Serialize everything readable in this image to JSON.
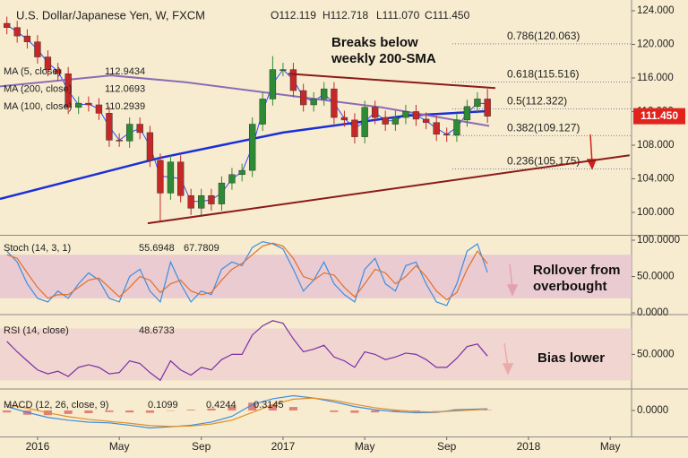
{
  "header": {
    "symbol": "U.S. Dollar/Japanese Yen, W, FXCM",
    "ohlc": [
      {
        "value": 112.119,
        "label": "O112.119"
      },
      {
        "value": 112.718,
        "label": "H112.718"
      },
      {
        "value": 111.07,
        "label": "L111.070"
      },
      {
        "value": 111.45,
        "label": "C111.450"
      }
    ]
  },
  "annotations": [
    {
      "lines": [
        "Breaks below",
        "weekly 200-SMA"
      ]
    },
    {
      "lines": [
        "Rollover from",
        "overbought"
      ]
    },
    {
      "lines": [
        "Bias lower"
      ]
    }
  ],
  "chart_data": [
    {
      "type": "candlestick",
      "up_color": "#2e8b35",
      "down_color": "#c62828",
      "xlim": [
        2015.847,
        2018.42
      ],
      "ylim": [
        97.33,
        125.28
      ],
      "yticks": [
        {
          "value": 100,
          "label": "100.000"
        },
        {
          "value": 104,
          "label": "104.000"
        },
        {
          "value": 108,
          "label": "108.000"
        },
        {
          "value": 112,
          "label": "112.000"
        },
        {
          "value": 116,
          "label": "116.000"
        },
        {
          "value": 120,
          "label": "120.000"
        },
        {
          "value": 124,
          "label": "124.000"
        }
      ],
      "x": [
        2015.875,
        2015.917,
        2015.958,
        2016.0,
        2016.042,
        2016.083,
        2016.125,
        2016.167,
        2016.208,
        2016.25,
        2016.292,
        2016.333,
        2016.375,
        2016.417,
        2016.458,
        2016.5,
        2016.542,
        2016.583,
        2016.625,
        2016.667,
        2016.708,
        2016.75,
        2016.792,
        2016.833,
        2016.875,
        2016.917,
        2016.958,
        2017.0,
        2017.042,
        2017.083,
        2017.125,
        2017.167,
        2017.208,
        2017.25,
        2017.292,
        2017.333,
        2017.375,
        2017.417,
        2017.458,
        2017.5,
        2017.542,
        2017.583,
        2017.625,
        2017.667,
        2017.708,
        2017.75,
        2017.792,
        2017.833
      ],
      "open": [
        122.5,
        122.0,
        121.0,
        120.3,
        118.5,
        117.0,
        116.5,
        112.5,
        113.0,
        112.8,
        111.8,
        108.6,
        108.5,
        110.5,
        109.5,
        106.2,
        102.3,
        106.0,
        102.0,
        100.5,
        102.0,
        101.0,
        103.5,
        104.5,
        105.0,
        110.5,
        113.5,
        117.0,
        117.0,
        114.5,
        112.8,
        113.5,
        114.7,
        111.3,
        111.0,
        109.0,
        112.5,
        111.3,
        110.5,
        111.3,
        112.0,
        111.1,
        110.7,
        109.3,
        109.2,
        111.0,
        112.6,
        113.5
      ],
      "high": [
        123.3,
        122.8,
        121.8,
        121.1,
        119.3,
        117.8,
        117.3,
        113.8,
        113.8,
        113.6,
        112.6,
        109.4,
        111.3,
        111.3,
        110.3,
        107.0,
        106.8,
        106.8,
        102.8,
        102.8,
        102.8,
        104.3,
        105.3,
        105.8,
        111.3,
        114.3,
        118.6,
        117.8,
        117.8,
        115.3,
        114.3,
        115.5,
        115.5,
        112.1,
        111.8,
        113.3,
        113.3,
        112.1,
        112.1,
        112.8,
        112.8,
        111.9,
        111.5,
        110.1,
        111.8,
        113.4,
        114.3,
        114.7
      ],
      "low": [
        121.2,
        120.2,
        119.5,
        117.7,
        116.2,
        115.7,
        111.7,
        111.7,
        112.0,
        111.0,
        107.8,
        107.8,
        107.7,
        108.7,
        105.4,
        99.0,
        101.5,
        101.2,
        99.7,
        99.7,
        100.2,
        100.2,
        102.7,
        103.7,
        104.2,
        109.7,
        112.7,
        116.2,
        113.7,
        112.0,
        112.0,
        112.7,
        110.5,
        110.2,
        108.2,
        108.2,
        110.5,
        109.7,
        109.7,
        110.5,
        110.3,
        109.9,
        108.5,
        108.4,
        108.4,
        110.2,
        111.8,
        110.65
      ],
      "close": [
        122.0,
        121.0,
        120.3,
        118.5,
        117.0,
        116.5,
        112.5,
        113.0,
        112.8,
        111.8,
        108.6,
        108.5,
        110.5,
        109.5,
        106.2,
        102.3,
        106.0,
        102.0,
        100.5,
        102.0,
        101.0,
        103.5,
        104.5,
        105.0,
        110.5,
        113.5,
        117.0,
        117.0,
        114.5,
        112.8,
        113.5,
        114.7,
        111.3,
        111.0,
        109.0,
        112.5,
        111.3,
        110.5,
        111.3,
        112.0,
        111.1,
        110.7,
        109.3,
        109.2,
        111.0,
        112.6,
        113.5,
        111.45
      ],
      "series": [
        {
          "name": "MA (5, close)",
          "color": "#2f4bff",
          "width": 1,
          "x": [
            2015.875,
            2015.917,
            2015.958,
            2016.0,
            2016.042,
            2016.083,
            2016.125,
            2016.167,
            2016.208,
            2016.25,
            2016.292,
            2016.333,
            2016.375,
            2016.417,
            2016.458,
            2016.5,
            2016.542,
            2016.583,
            2016.625,
            2016.667,
            2016.708,
            2016.75,
            2016.792,
            2016.833,
            2016.875,
            2016.917,
            2016.958,
            2017.0,
            2017.042,
            2017.083,
            2017.125,
            2017.167,
            2017.208,
            2017.25,
            2017.292,
            2017.333,
            2017.375,
            2017.417,
            2017.458,
            2017.5,
            2017.542,
            2017.583,
            2017.625,
            2017.667,
            2017.708,
            2017.75,
            2017.792,
            2017.833
          ],
          "values": [
            122.3,
            121.5,
            120.6,
            119.4,
            117.8,
            116.8,
            114.5,
            112.8,
            112.9,
            112.3,
            110.2,
            108.6,
            109.5,
            110.0,
            107.9,
            104.3,
            104.2,
            104.0,
            101.3,
            101.3,
            101.5,
            102.3,
            104.0,
            104.8,
            107.8,
            112.0,
            115.3,
            117.0,
            115.8,
            113.7,
            113.2,
            114.1,
            113.0,
            111.2,
            110.0,
            110.8,
            111.9,
            110.9,
            110.9,
            111.7,
            111.6,
            110.9,
            110.0,
            109.3,
            110.1,
            111.8,
            113.0,
            112.9434
          ]
        },
        {
          "name": "MA (200, close)",
          "color": "#1a2fd6",
          "width": 2.5,
          "x": [
            2015.847,
            2016.5,
            2017.0,
            2017.5,
            2017.84
          ],
          "values": [
            101.6,
            106.5,
            109.5,
            111.5,
            112.0693
          ]
        },
        {
          "name": "MA (100, close)",
          "color": "#8d6bb5",
          "width": 2,
          "x": [
            2015.847,
            2016.3,
            2016.6,
            2017.0,
            2017.4,
            2017.84
          ],
          "values": [
            115.0,
            116.3,
            115.5,
            114.0,
            112.5,
            110.2939
          ]
        }
      ],
      "last": {
        "value": 111.45,
        "label": "111.450"
      },
      "fib": [
        {
          "value": 120.063,
          "label": "0.786(120.063)"
        },
        {
          "value": 115.516,
          "label": "0.618(115.516)"
        },
        {
          "value": 112.322,
          "label": "0.5(112.322)"
        },
        {
          "value": 109.127,
          "label": "0.382(109.127)"
        },
        {
          "value": 105.175,
          "label": "0.236(105.175)"
        }
      ],
      "trendlines": [
        {
          "color": "#8b1a1a",
          "x": [
            2017.022,
            2017.865
          ],
          "y": [
            116.5,
            114.8
          ]
        },
        {
          "color": "#8b1a1a",
          "x": [
            2016.449,
            2018.412
          ],
          "y": [
            98.7,
            106.8
          ]
        }
      ]
    },
    {
      "type": "line",
      "indicator": "Stoch (14, 3, 1)",
      "xlim": [
        2015.847,
        2018.42
      ],
      "ylim": [
        -1.2,
        106.2
      ],
      "bands": [
        20,
        80
      ],
      "band_color": "#e6c3d2",
      "yticks": [
        {
          "value": 0,
          "label": "0.0000"
        },
        {
          "value": 50,
          "label": "50.0000"
        },
        {
          "value": 100,
          "label": "100.0000"
        }
      ],
      "x": [
        2015.875,
        2015.917,
        2015.958,
        2016.0,
        2016.042,
        2016.083,
        2016.125,
        2016.167,
        2016.208,
        2016.25,
        2016.292,
        2016.333,
        2016.375,
        2016.417,
        2016.458,
        2016.5,
        2016.542,
        2016.583,
        2016.625,
        2016.667,
        2016.708,
        2016.75,
        2016.792,
        2016.833,
        2016.875,
        2016.917,
        2016.958,
        2017.0,
        2017.042,
        2017.083,
        2017.125,
        2017.167,
        2017.208,
        2017.25,
        2017.292,
        2017.333,
        2017.375,
        2017.417,
        2017.458,
        2017.5,
        2017.542,
        2017.583,
        2017.625,
        2017.667,
        2017.708,
        2017.75,
        2017.792,
        2017.833
      ],
      "series": [
        {
          "color": "#3d8ee0",
          "values": [
            85,
            70,
            40,
            20,
            15,
            30,
            20,
            40,
            55,
            45,
            20,
            15,
            50,
            60,
            30,
            15,
            70,
            40,
            15,
            30,
            25,
            60,
            70,
            65,
            90,
            98,
            95,
            88,
            60,
            30,
            45,
            70,
            40,
            25,
            15,
            60,
            75,
            40,
            30,
            65,
            70,
            40,
            15,
            10,
            40,
            85,
            95,
            55.6948
          ]
        },
        {
          "color": "#e0702a",
          "values": [
            80,
            75,
            55,
            35,
            20,
            25,
            25,
            35,
            45,
            48,
            35,
            22,
            35,
            50,
            45,
            28,
            40,
            45,
            30,
            25,
            28,
            45,
            60,
            68,
            80,
            92,
            96,
            92,
            75,
            50,
            45,
            55,
            52,
            35,
            22,
            40,
            60,
            55,
            40,
            50,
            65,
            50,
            30,
            18,
            28,
            60,
            85,
            67.7809
          ]
        }
      ]
    },
    {
      "type": "line",
      "indicator": "RSI (14, close)",
      "xlim": [
        2015.847,
        2018.42
      ],
      "ylim": [
        24,
        80
      ],
      "bands": [
        30,
        70
      ],
      "band_color": "#efd0cf",
      "yticks": [
        {
          "value": 50,
          "label": "50.0000"
        }
      ],
      "x": [
        2015.875,
        2015.917,
        2015.958,
        2016.0,
        2016.042,
        2016.083,
        2016.125,
        2016.167,
        2016.208,
        2016.25,
        2016.292,
        2016.333,
        2016.375,
        2016.417,
        2016.458,
        2016.5,
        2016.542,
        2016.583,
        2016.625,
        2016.667,
        2016.708,
        2016.75,
        2016.792,
        2016.833,
        2016.875,
        2016.917,
        2016.958,
        2017.0,
        2017.042,
        2017.083,
        2017.125,
        2017.167,
        2017.208,
        2017.25,
        2017.292,
        2017.333,
        2017.375,
        2017.417,
        2017.458,
        2017.5,
        2017.542,
        2017.583,
        2017.625,
        2017.667,
        2017.708,
        2017.75,
        2017.792,
        2017.833
      ],
      "series": [
        {
          "color": "#7b2fa8",
          "values": [
            60,
            52,
            45,
            38,
            35,
            37,
            33,
            40,
            42,
            40,
            35,
            36,
            45,
            43,
            36,
            30,
            45,
            38,
            34,
            40,
            38,
            46,
            50,
            50,
            65,
            72,
            76,
            74,
            62,
            52,
            54,
            57,
            48,
            45,
            40,
            52,
            50,
            46,
            48,
            51,
            50,
            46,
            40,
            40,
            47,
            56,
            58,
            48.6733
          ]
        }
      ]
    },
    {
      "type": "line",
      "indicator": "MACD (12, 26, close, 9)",
      "xlim": [
        2015.847,
        2018.42
      ],
      "ylim": [
        -6.7,
        5.3
      ],
      "yticks": [
        {
          "value": 0,
          "label": "0.0000"
        }
      ],
      "xticks": [
        {
          "value": 2016,
          "label": "2016"
        },
        {
          "value": 2016.333,
          "label": "May"
        },
        {
          "value": 2016.667,
          "label": "Sep"
        },
        {
          "value": 2017,
          "label": "2017"
        },
        {
          "value": 2017.333,
          "label": "May"
        },
        {
          "value": 2017.667,
          "label": "Sep"
        },
        {
          "value": 2018,
          "label": "2018"
        },
        {
          "value": 2018.333,
          "label": "May"
        }
      ],
      "x": [
        2015.875,
        2015.958,
        2016.042,
        2016.125,
        2016.208,
        2016.292,
        2016.375,
        2016.458,
        2016.542,
        2016.625,
        2016.708,
        2016.792,
        2016.875,
        2016.958,
        2017.042,
        2017.125,
        2017.208,
        2017.292,
        2017.375,
        2017.458,
        2017.542,
        2017.625,
        2017.708,
        2017.833
      ],
      "series": [
        {
          "color": "#d9534f",
          "style": "histogram",
          "values": [
            -0.5,
            -1.1,
            -1.2,
            -0.9,
            -0.7,
            -0.4,
            -0.5,
            -0.6,
            -0.1,
            0.2,
            0.5,
            1.0,
            2.0,
            1.5,
            0.9,
            0,
            -0.4,
            -0.6,
            -0.5,
            -0.4,
            -0.3,
            -0.1,
            0.3,
            0.1099
          ]
        },
        {
          "color": "#3d8ee0",
          "values": [
            1.0,
            -0.5,
            -1.8,
            -2.5,
            -3.0,
            -3.2,
            -3.8,
            -4.5,
            -4.2,
            -3.8,
            -3.0,
            -1.5,
            1.5,
            3.0,
            3.8,
            3.2,
            2.2,
            1.0,
            0.2,
            -0.3,
            -0.6,
            -0.5,
            0.2,
            0.4244
          ]
        },
        {
          "color": "#e0902a",
          "values": [
            1.5,
            0.6,
            -0.6,
            -1.6,
            -2.3,
            -2.8,
            -3.3,
            -3.9,
            -4.1,
            -4.0,
            -3.5,
            -2.5,
            -0.5,
            1.5,
            2.9,
            3.2,
            2.6,
            1.6,
            0.7,
            0.1,
            -0.3,
            -0.4,
            -0.1,
            0.3145
          ]
        }
      ]
    }
  ]
}
